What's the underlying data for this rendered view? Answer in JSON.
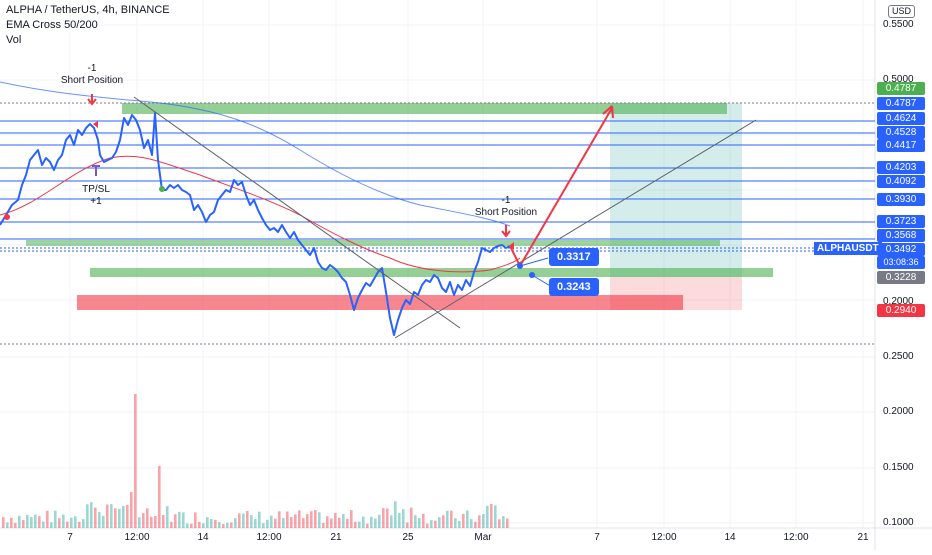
{
  "header": {
    "title": "ALPHA / TetherUS, 4h, BINANCE",
    "indicator": "EMA Cross 50/200",
    "volume": "Vol"
  },
  "currency_button": "USD",
  "symbol_tag": "ALPHAUSDT",
  "countdown": "03:08:36",
  "price_axis": [
    "0.5500",
    "0.5000",
    "0.2500",
    "0.2000",
    "0.1500",
    "0.1000",
    "0.2000"
  ],
  "price_tags": [
    {
      "value": "0.4787",
      "color": "#4caf50"
    },
    {
      "value": "0.4787",
      "color": "#2962ff"
    },
    {
      "value": "0.4624",
      "color": "#2962ff"
    },
    {
      "value": "0.4528",
      "color": "#2962ff"
    },
    {
      "value": "0.4417",
      "color": "#2962ff"
    },
    {
      "value": "0.4203",
      "color": "#2962ff"
    },
    {
      "value": "0.4092",
      "color": "#2962ff"
    },
    {
      "value": "0.3930",
      "color": "#2962ff"
    },
    {
      "value": "0.3723",
      "color": "#2962ff"
    },
    {
      "value": "0.3568",
      "color": "#2962ff"
    },
    {
      "value": "0.3492",
      "color": "#2962ff"
    },
    {
      "value": "0.3228",
      "color": "#787b86"
    },
    {
      "value": "0.2940",
      "color": "#f23645"
    }
  ],
  "time_axis": [
    "7",
    "12:00",
    "14",
    "12:00",
    "21",
    "25",
    "Mar",
    "7",
    "12:00",
    "14",
    "12:00",
    "21"
  ],
  "annotations": {
    "short1_count": "-1",
    "short1_label": "Short Position",
    "tpsl_label": "TP/SL",
    "tpsl_count": "+1",
    "short2_count": "-1",
    "short2_label": "Short Position"
  },
  "bubbles": {
    "upper": "0.3317",
    "lower": "0.3243"
  },
  "colors": {
    "price_line": "#2962ff",
    "ema50": "#f23645",
    "ema200": "#2962ff",
    "support_zone": "#4caf50",
    "stop_zone": "#f23645",
    "volume": "#f23645"
  }
}
